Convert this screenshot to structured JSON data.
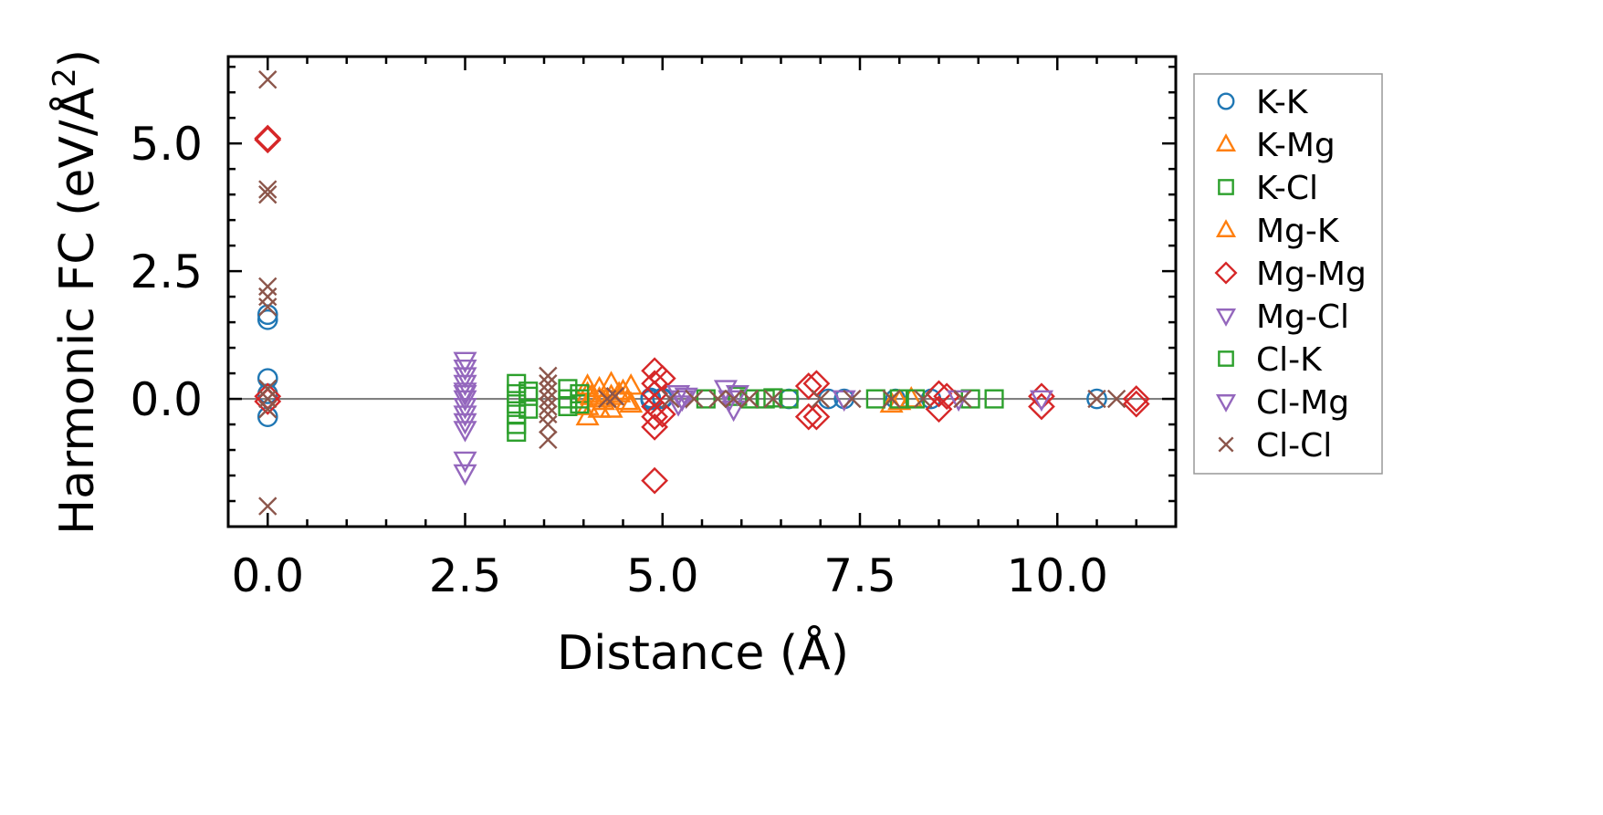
{
  "chart_data": {
    "type": "scatter",
    "title": "",
    "xlabel": "Distance (Å)",
    "ylabel_main": "Harmonic FC (eV/Å",
    "ylabel_sup": "2",
    "ylabel_close": ")",
    "xlim": [
      -0.5,
      11.5
    ],
    "ylim": [
      -2.5,
      6.7
    ],
    "xticks": [
      0.0,
      2.5,
      5.0,
      7.5,
      10.0
    ],
    "xtick_labels": [
      "0.0",
      "2.5",
      "5.0",
      "7.5",
      "10.0"
    ],
    "yticks": [
      0.0,
      2.5,
      5.0
    ],
    "ytick_labels": [
      "0.0",
      "2.5",
      "5.0"
    ],
    "x_minor_step": 0.5,
    "y_minor_step": 0.5,
    "hline_y": 0.0,
    "legend_position": "outside-right",
    "series": [
      {
        "name": "K-K",
        "marker": "circle",
        "color": "#1f77b4",
        "points": [
          [
            0,
            1.65
          ],
          [
            0,
            1.55
          ],
          [
            0,
            0.4
          ],
          [
            0,
            0.1
          ],
          [
            0,
            -0.35
          ],
          [
            4.85,
            0
          ],
          [
            4.85,
            0.02
          ],
          [
            4.85,
            -0.02
          ],
          [
            4.85,
            0.01
          ],
          [
            5.0,
            0
          ],
          [
            5.0,
            0.02
          ],
          [
            6.6,
            0
          ],
          [
            7.1,
            0
          ],
          [
            7.3,
            0
          ],
          [
            7.95,
            0
          ],
          [
            8.4,
            0
          ],
          [
            10.5,
            0
          ]
        ]
      },
      {
        "name": "K-Mg",
        "marker": "triangle-up",
        "color": "#ff7f0e",
        "points": [
          [
            4.05,
            0.25
          ],
          [
            4.05,
            0.1
          ],
          [
            4.05,
            -0.15
          ],
          [
            4.05,
            -0.35
          ],
          [
            4.2,
            0.2
          ],
          [
            4.2,
            0
          ],
          [
            4.2,
            -0.2
          ],
          [
            4.35,
            0.3
          ],
          [
            4.35,
            0.05
          ],
          [
            4.35,
            -0.2
          ],
          [
            4.5,
            0.15
          ],
          [
            4.6,
            0.25
          ],
          [
            4.6,
            -0.1
          ],
          [
            7.9,
            -0.1
          ],
          [
            8.0,
            -0.05
          ],
          [
            8.15,
            0
          ]
        ]
      },
      {
        "name": "K-Cl",
        "marker": "square",
        "color": "#2ca02c",
        "points": [
          [
            3.15,
            0.3
          ],
          [
            3.15,
            0.1
          ],
          [
            3.15,
            -0.1
          ],
          [
            3.15,
            -0.3
          ],
          [
            3.15,
            -0.5
          ],
          [
            3.15,
            -0.65
          ],
          [
            3.3,
            0.15
          ],
          [
            3.3,
            -0.2
          ],
          [
            3.8,
            0.2
          ],
          [
            3.8,
            0
          ],
          [
            3.8,
            -0.15
          ],
          [
            3.95,
            0.1
          ],
          [
            3.95,
            -0.1
          ],
          [
            5.55,
            0
          ],
          [
            5.95,
            0.05
          ],
          [
            6.1,
            0
          ],
          [
            6.3,
            0
          ],
          [
            6.6,
            0
          ],
          [
            7.7,
            0
          ],
          [
            8.0,
            0
          ],
          [
            8.2,
            0
          ],
          [
            8.9,
            0
          ],
          [
            9.2,
            0
          ]
        ]
      },
      {
        "name": "Mg-K",
        "marker": "triangle-up",
        "color": "#ff7f0e",
        "points": [
          [
            4.1,
            0.05
          ],
          [
            4.25,
            -0.05
          ],
          [
            4.45,
            0.1
          ],
          [
            4.55,
            -0.05
          ]
        ]
      },
      {
        "name": "Mg-Mg",
        "marker": "diamond",
        "color": "#d62728",
        "points": [
          [
            0,
            5.1
          ],
          [
            0,
            5.07
          ],
          [
            0,
            0.05
          ],
          [
            0,
            -0.05
          ],
          [
            4.9,
            0.55
          ],
          [
            4.9,
            0.3
          ],
          [
            4.9,
            0.1
          ],
          [
            4.9,
            -0.15
          ],
          [
            4.9,
            -0.35
          ],
          [
            4.9,
            -0.55
          ],
          [
            4.9,
            -1.6
          ],
          [
            5.0,
            0.4
          ],
          [
            5.0,
            -0.3
          ],
          [
            6.85,
            0.25
          ],
          [
            6.85,
            -0.35
          ],
          [
            6.95,
            0.3
          ],
          [
            6.95,
            -0.35
          ],
          [
            8.5,
            0.1
          ],
          [
            8.5,
            -0.2
          ],
          [
            8.6,
            0.05
          ],
          [
            9.8,
            0.05
          ],
          [
            9.8,
            -0.15
          ],
          [
            11.0,
            0
          ],
          [
            11.0,
            -0.1
          ]
        ]
      },
      {
        "name": "Mg-Cl",
        "marker": "triangle-down",
        "color": "#9467bd",
        "points": [
          [
            2.5,
            0.75
          ],
          [
            2.5,
            0.6
          ],
          [
            2.5,
            0.45
          ],
          [
            2.5,
            0.3
          ],
          [
            2.5,
            0.15
          ],
          [
            2.5,
            0
          ],
          [
            2.5,
            -0.15
          ],
          [
            2.5,
            -0.3
          ],
          [
            2.5,
            -0.45
          ],
          [
            2.5,
            -0.6
          ],
          [
            2.5,
            -1.2
          ],
          [
            2.5,
            -1.45
          ],
          [
            5.2,
            0.1
          ],
          [
            5.2,
            -0.1
          ],
          [
            5.3,
            0.05
          ],
          [
            5.8,
            0.2
          ],
          [
            5.85,
            0
          ],
          [
            5.9,
            -0.2
          ],
          [
            7.3,
            0
          ],
          [
            8.75,
            0
          ],
          [
            9.8,
            0
          ]
        ]
      },
      {
        "name": "Cl-K",
        "marker": "square",
        "color": "#2ca02c",
        "points": [
          [
            3.3,
            0.05
          ],
          [
            3.95,
            0
          ],
          [
            6.4,
            0.02
          ]
        ]
      },
      {
        "name": "Cl-Mg",
        "marker": "triangle-down",
        "color": "#9467bd",
        "points": [
          [
            2.5,
            0.1
          ],
          [
            5.25,
            0
          ],
          [
            5.95,
            0.1
          ]
        ]
      },
      {
        "name": "Cl-Cl",
        "marker": "x",
        "color": "#8c564b",
        "points": [
          [
            0,
            6.25
          ],
          [
            0,
            4.1
          ],
          [
            0,
            4.0
          ],
          [
            0,
            2.2
          ],
          [
            0,
            2.0
          ],
          [
            0,
            1.8
          ],
          [
            0,
            0.2
          ],
          [
            0,
            0
          ],
          [
            0,
            -0.2
          ],
          [
            0,
            -2.1
          ],
          [
            3.55,
            0.45
          ],
          [
            3.55,
            0.3
          ],
          [
            3.55,
            0.15
          ],
          [
            3.55,
            0
          ],
          [
            3.55,
            -0.15
          ],
          [
            3.55,
            -0.3
          ],
          [
            3.55,
            -0.5
          ],
          [
            3.55,
            -0.8
          ],
          [
            4.3,
            0
          ],
          [
            4.4,
            0.05
          ],
          [
            5.1,
            0
          ],
          [
            5.4,
            0
          ],
          [
            5.7,
            0
          ],
          [
            5.9,
            0
          ],
          [
            6.1,
            0
          ],
          [
            6.4,
            0
          ],
          [
            7.0,
            0
          ],
          [
            7.4,
            0
          ],
          [
            7.9,
            0
          ],
          [
            8.3,
            0
          ],
          [
            8.8,
            0
          ],
          [
            10.5,
            0
          ],
          [
            10.75,
            0
          ]
        ]
      }
    ],
    "legend": [
      {
        "label": "K-K",
        "marker": "circle",
        "color": "#1f77b4"
      },
      {
        "label": "K-Mg",
        "marker": "triangle-up",
        "color": "#ff7f0e"
      },
      {
        "label": "K-Cl",
        "marker": "square",
        "color": "#2ca02c"
      },
      {
        "label": "Mg-K",
        "marker": "triangle-up",
        "color": "#ff7f0e"
      },
      {
        "label": "Mg-Mg",
        "marker": "diamond",
        "color": "#d62728"
      },
      {
        "label": "Mg-Cl",
        "marker": "triangle-down",
        "color": "#9467bd"
      },
      {
        "label": "Cl-K",
        "marker": "square",
        "color": "#2ca02c"
      },
      {
        "label": "Cl-Mg",
        "marker": "triangle-down",
        "color": "#9467bd"
      },
      {
        "label": "Cl-Cl",
        "marker": "x",
        "color": "#8c564b"
      }
    ]
  }
}
